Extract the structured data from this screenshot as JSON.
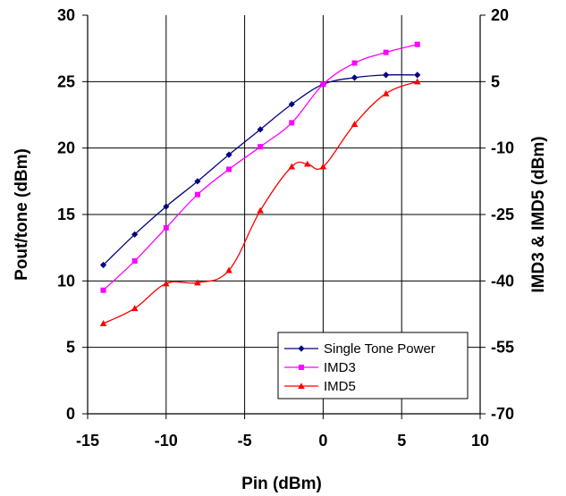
{
  "chart_data": {
    "type": "line",
    "xlabel": "Pin (dBm)",
    "ylabel": "Pout/tone (dBm)",
    "y2label": "IMD3 & IMD5 (dBm)",
    "xlim": [
      -15,
      10
    ],
    "ylim": [
      0,
      30
    ],
    "y2lim": [
      -70,
      20
    ],
    "x_ticks": [
      "-15",
      "-10",
      "-5",
      "0",
      "5",
      "10"
    ],
    "y_ticks": [
      "0",
      "5",
      "10",
      "15",
      "20",
      "25",
      "30"
    ],
    "y2_ticks": [
      "-70",
      "-55",
      "-40",
      "-25",
      "-10",
      "5",
      "20"
    ],
    "grid": true,
    "legend_position": "bottom-right",
    "series": [
      {
        "name": "Single Tone Power",
        "axis": "left",
        "color": "#000080",
        "marker": "diamond",
        "x": [
          -14,
          -12,
          -10,
          -8,
          -6,
          -4,
          -2,
          0,
          2,
          4,
          6
        ],
        "y": [
          11.2,
          13.5,
          15.6,
          17.5,
          19.5,
          21.4,
          23.3,
          24.8,
          25.3,
          25.5,
          25.5
        ]
      },
      {
        "name": "IMD3",
        "axis": "left",
        "color": "#ff00ff",
        "marker": "square",
        "x": [
          -14,
          -12,
          -10,
          -8,
          -6,
          -4,
          -2,
          0,
          2,
          4,
          6
        ],
        "y": [
          9.3,
          11.5,
          14.0,
          16.5,
          18.4,
          20.1,
          21.9,
          24.8,
          26.4,
          27.2,
          27.8
        ]
      },
      {
        "name": "IMD5",
        "axis": "right",
        "color": "#ff0000",
        "marker": "triangle",
        "x": [
          -14,
          -12,
          -10,
          -8,
          -6,
          -4,
          -2,
          -1,
          0,
          2,
          4,
          6
        ],
        "y": [
          -49.6,
          -46.2,
          -40.6,
          -40.4,
          -37.6,
          -24.1,
          -14.2,
          -13.6,
          -14.2,
          -4.6,
          2.3,
          5.0
        ]
      }
    ]
  }
}
